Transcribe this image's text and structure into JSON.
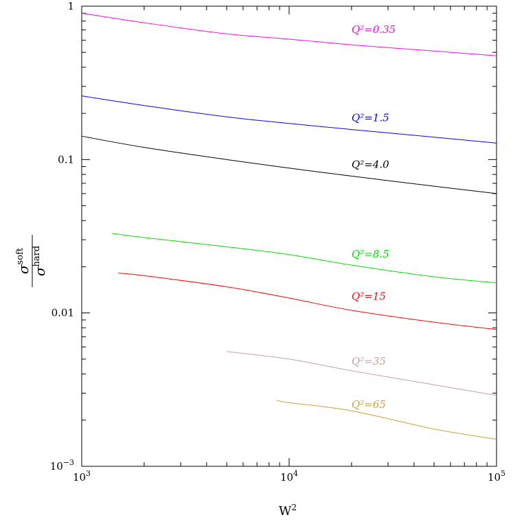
{
  "chart_data": {
    "type": "line",
    "xlabel": "W²",
    "ylabel": {
      "numerator": "σ",
      "numerator_sup": "soft",
      "denominator": "σ",
      "denominator_sup": "hard"
    },
    "x_scale": "log",
    "y_scale": "log",
    "xlim": [
      1000,
      100000
    ],
    "ylim": [
      0.001,
      1
    ],
    "grid": false,
    "x_ticks": [
      {
        "value": 1000,
        "base": "10",
        "exp": "3"
      },
      {
        "value": 10000,
        "base": "10",
        "exp": "4"
      },
      {
        "value": 100000,
        "base": "10",
        "exp": "5"
      }
    ],
    "y_ticks": [
      {
        "value": 0.001,
        "base": "10",
        "exp": "−3"
      },
      {
        "value": 0.01,
        "label": "0.01"
      },
      {
        "value": 0.1,
        "label": "0.1"
      },
      {
        "value": 1,
        "label": "1"
      }
    ],
    "series": [
      {
        "name": "Q²=0.35",
        "color": "#ff00ff",
        "label_at": [
          20000,
          0.67
        ],
        "x": [
          1000,
          2000,
          5000,
          10000,
          20000,
          50000,
          100000
        ],
        "y": [
          0.9,
          0.78,
          0.66,
          0.61,
          0.56,
          0.51,
          0.475
        ]
      },
      {
        "name": "Q²=1.5",
        "color": "#0000ff",
        "label_at": [
          20000,
          0.178
        ],
        "x": [
          1000,
          2000,
          5000,
          10000,
          20000,
          50000,
          100000
        ],
        "y": [
          0.26,
          0.225,
          0.19,
          0.172,
          0.157,
          0.14,
          0.128
        ]
      },
      {
        "name": "Q²=4.0",
        "color": "#000000",
        "label_at": [
          20000,
          0.088
        ],
        "x": [
          1000,
          2000,
          5000,
          10000,
          20000,
          50000,
          100000
        ],
        "y": [
          0.142,
          0.12,
          0.1,
          0.088,
          0.078,
          0.067,
          0.06
        ]
      },
      {
        "name": "Q²=8.5",
        "color": "#00e000",
        "label_at": [
          20000,
          0.023
        ],
        "x": [
          1400,
          2000,
          5000,
          10000,
          20000,
          50000,
          100000
        ],
        "y": [
          0.033,
          0.031,
          0.027,
          0.024,
          0.0205,
          0.0172,
          0.0157
        ]
      },
      {
        "name": "Q²=15",
        "color": "#ff0000",
        "label_at": [
          20000,
          0.0122
        ],
        "x": [
          1500,
          2000,
          5000,
          10000,
          20000,
          50000,
          100000
        ],
        "y": [
          0.0182,
          0.0175,
          0.0148,
          0.0125,
          0.0104,
          0.0087,
          0.0078
        ]
      },
      {
        "name": "Q²=35",
        "color": "#c8a0a0",
        "label_at": [
          20000,
          0.0046
        ],
        "x": [
          5000,
          10000,
          20000,
          50000,
          100000
        ],
        "y": [
          0.0056,
          0.005,
          0.0042,
          0.0034,
          0.0029
        ]
      },
      {
        "name": "Q²=65",
        "color": "#d0a030",
        "label_at": [
          20000,
          0.0024
        ],
        "x": [
          8700,
          10000,
          20000,
          50000,
          100000
        ],
        "y": [
          0.0027,
          0.0026,
          0.0023,
          0.00175,
          0.0015
        ]
      }
    ]
  }
}
